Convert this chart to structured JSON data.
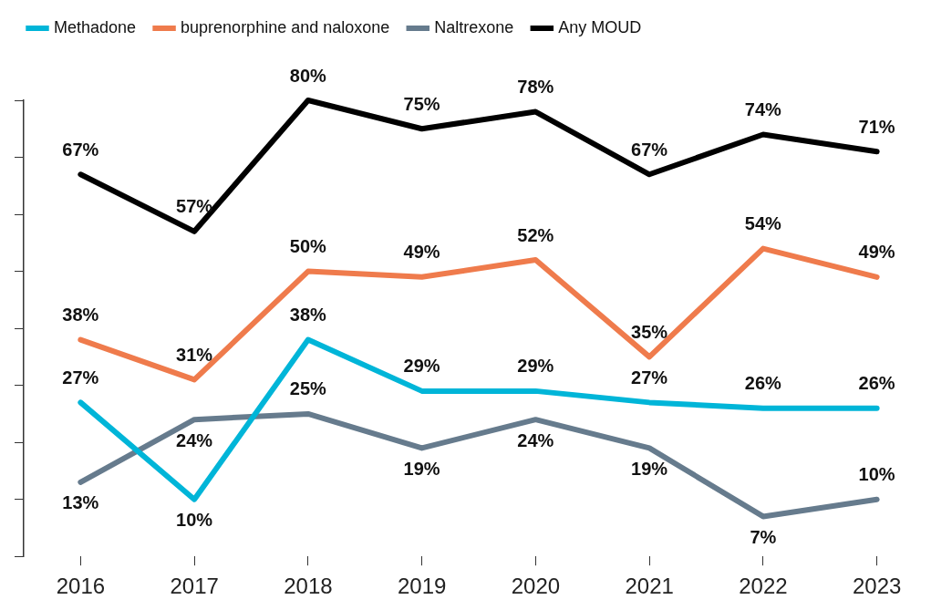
{
  "chart_data": {
    "type": "line",
    "categories": [
      "2016",
      "2017",
      "2018",
      "2019",
      "2020",
      "2021",
      "2022",
      "2023"
    ],
    "series": [
      {
        "name": "Methadone",
        "color": "#00b5d8",
        "values": [
          27,
          10,
          38,
          29,
          29,
          27,
          26,
          26
        ],
        "value_labels": [
          "27%",
          "10%",
          "38%",
          "29%",
          "29%",
          "27%",
          "26%",
          "26%"
        ]
      },
      {
        "name": "buprenorphine and naloxone",
        "color": "#ef7b4c",
        "values": [
          38,
          31,
          50,
          49,
          52,
          35,
          54,
          49
        ],
        "value_labels": [
          "38%",
          "31%",
          "50%",
          "49%",
          "52%",
          "35%",
          "54%",
          "49%"
        ]
      },
      {
        "name": "Naltrexone",
        "color": "#667b8d",
        "values": [
          13,
          24,
          25,
          19,
          24,
          19,
          7,
          10
        ],
        "value_labels": [
          "13%",
          "24%",
          "25%",
          "19%",
          "24%",
          "19%",
          "7%",
          "10%"
        ]
      },
      {
        "name": "Any MOUD",
        "color": "#000000",
        "values": [
          67,
          57,
          80,
          75,
          78,
          67,
          74,
          71
        ],
        "value_labels": [
          "67%",
          "57%",
          "80%",
          "75%",
          "78%",
          "67%",
          "74%",
          "71%"
        ]
      }
    ],
    "tick_labels": "x",
    "grid": false,
    "legend": "top left",
    "marker": "none",
    "line_style": "solid"
  }
}
